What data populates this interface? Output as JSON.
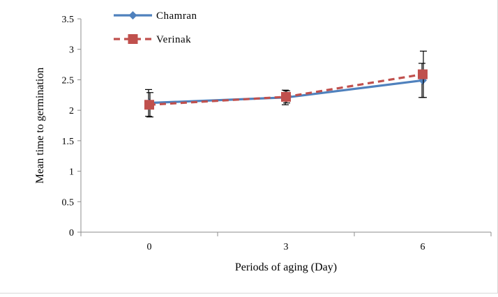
{
  "chart_data": {
    "type": "line",
    "title": "",
    "xlabel": "Periods of aging (Day)",
    "ylabel": "Mean time to germination",
    "categories": [
      "0",
      "3",
      "6"
    ],
    "ylim": [
      0,
      3.5
    ],
    "yticks": [
      "0",
      "0.5",
      "1",
      "1.5",
      "2",
      "2.5",
      "3",
      "3.5"
    ],
    "grid": false,
    "legend_position": "top-left",
    "series": [
      {
        "name": "Chamran",
        "values": [
          2.12,
          2.21,
          2.49
        ],
        "error": [
          0.22,
          0.12,
          0.28
        ],
        "color": "#4f81bd",
        "line_style": "solid",
        "marker": "diamond"
      },
      {
        "name": "Verinak",
        "values": [
          2.09,
          2.22,
          2.59
        ],
        "error": [
          0.2,
          0.1,
          0.38
        ],
        "color": "#c0504d",
        "line_style": "dashed",
        "marker": "square"
      }
    ]
  }
}
